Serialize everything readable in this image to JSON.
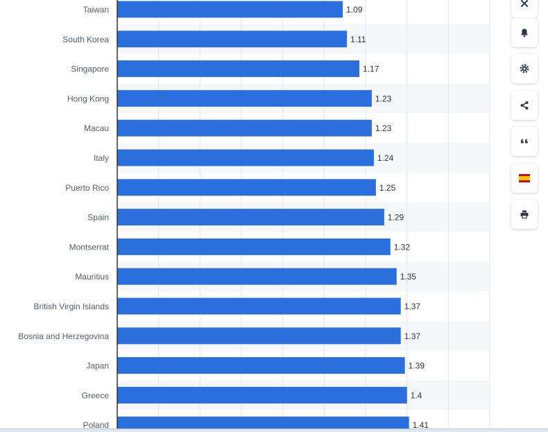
{
  "chart_data": {
    "type": "bar",
    "orientation": "horizontal",
    "categories": [
      "Taiwan",
      "South Korea",
      "Singapore",
      "Hong Kong",
      "Macau",
      "Italy",
      "Puerto Rico",
      "Spain",
      "Montserrat",
      "Mauritius",
      "British Virgin Islands",
      "Bosnia and Herzegovina",
      "Japan",
      "Greece",
      "Poland"
    ],
    "values": [
      1.09,
      1.11,
      1.17,
      1.23,
      1.23,
      1.24,
      1.25,
      1.29,
      1.32,
      1.35,
      1.37,
      1.37,
      1.39,
      1.4,
      1.41
    ],
    "value_labels": [
      "1.09",
      "1.11",
      "1.17",
      "1.23",
      "1.23",
      "1.24",
      "1.25",
      "1.29",
      "1.32",
      "1.35",
      "1.37",
      "1.37",
      "1.39",
      "1.4",
      "1.41"
    ],
    "xlim": [
      0,
      1.8
    ],
    "x_grid_step": 0.2,
    "grid": true,
    "bar_color": "#2a6fdb",
    "alternating_row_shading": true
  },
  "sidebar": {
    "buttons": [
      "close-icon",
      "bell-icon",
      "gear-icon",
      "share-icon",
      "quote-icon",
      "spain-flag-icon",
      "print-icon"
    ]
  },
  "colors": {
    "bar": "#2a6fdb",
    "grid": "#e2e5ea",
    "row_shade": "#f6f7f9",
    "axis": "#333333",
    "icon": "#2f3a48"
  }
}
